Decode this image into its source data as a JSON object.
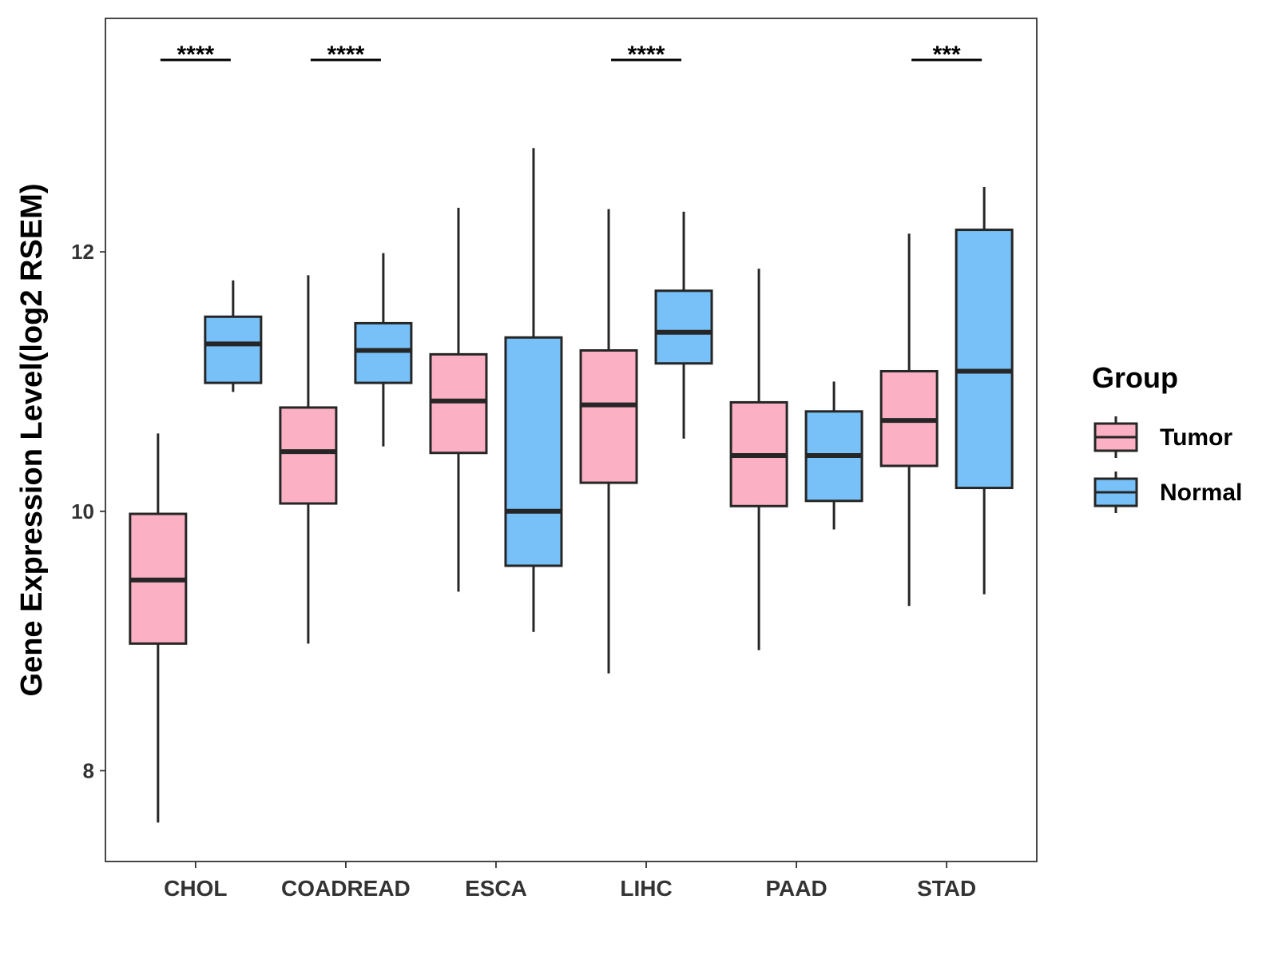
{
  "chart_data": {
    "type": "boxplot",
    "title": "",
    "xlabel": "",
    "ylabel": "Gene Expression Level(log2 RSEM)",
    "ylim": [
      7.3,
      13.8
    ],
    "yticks": [
      8,
      10,
      12
    ],
    "grid": false,
    "legend": {
      "title": "Group",
      "position": "right",
      "entries": [
        "Tumor",
        "Normal"
      ]
    },
    "colors": {
      "Tumor": "#FBB1C3",
      "Normal": "#77C1F8",
      "outline": "#262626"
    },
    "categories": [
      "CHOL",
      "COADREAD",
      "ESCA",
      "LIHC",
      "PAAD",
      "STAD"
    ],
    "series": [
      {
        "name": "Tumor",
        "boxes": [
          {
            "min": 7.6,
            "q1": 8.98,
            "median": 9.47,
            "q3": 9.98,
            "max": 10.6
          },
          {
            "min": 8.98,
            "q1": 10.06,
            "median": 10.46,
            "q3": 10.8,
            "max": 11.82
          },
          {
            "min": 9.38,
            "q1": 10.45,
            "median": 10.85,
            "q3": 11.21,
            "max": 12.34
          },
          {
            "min": 8.75,
            "q1": 10.22,
            "median": 10.82,
            "q3": 11.24,
            "max": 12.33
          },
          {
            "min": 8.93,
            "q1": 10.04,
            "median": 10.43,
            "q3": 10.84,
            "max": 11.87
          },
          {
            "min": 9.27,
            "q1": 10.35,
            "median": 10.7,
            "q3": 11.08,
            "max": 12.14
          }
        ]
      },
      {
        "name": "Normal",
        "boxes": [
          {
            "min": 10.92,
            "q1": 10.99,
            "median": 11.29,
            "q3": 11.5,
            "max": 11.78
          },
          {
            "min": 10.5,
            "q1": 10.99,
            "median": 11.24,
            "q3": 11.45,
            "max": 11.99
          },
          {
            "min": 9.07,
            "q1": 9.58,
            "median": 10.0,
            "q3": 11.34,
            "max": 12.8
          },
          {
            "min": 10.56,
            "q1": 11.14,
            "median": 11.38,
            "q3": 11.7,
            "max": 12.31
          },
          {
            "min": 9.86,
            "q1": 10.08,
            "median": 10.43,
            "q3": 10.77,
            "max": 11.0
          },
          {
            "min": 9.36,
            "q1": 10.18,
            "median": 11.08,
            "q3": 12.17,
            "max": 12.5
          }
        ]
      }
    ],
    "annotations": [
      {
        "category": "CHOL",
        "text": "****"
      },
      {
        "category": "COADREAD",
        "text": "****"
      },
      {
        "category": "LIHC",
        "text": "****"
      },
      {
        "category": "STAD",
        "text": "***"
      }
    ]
  }
}
